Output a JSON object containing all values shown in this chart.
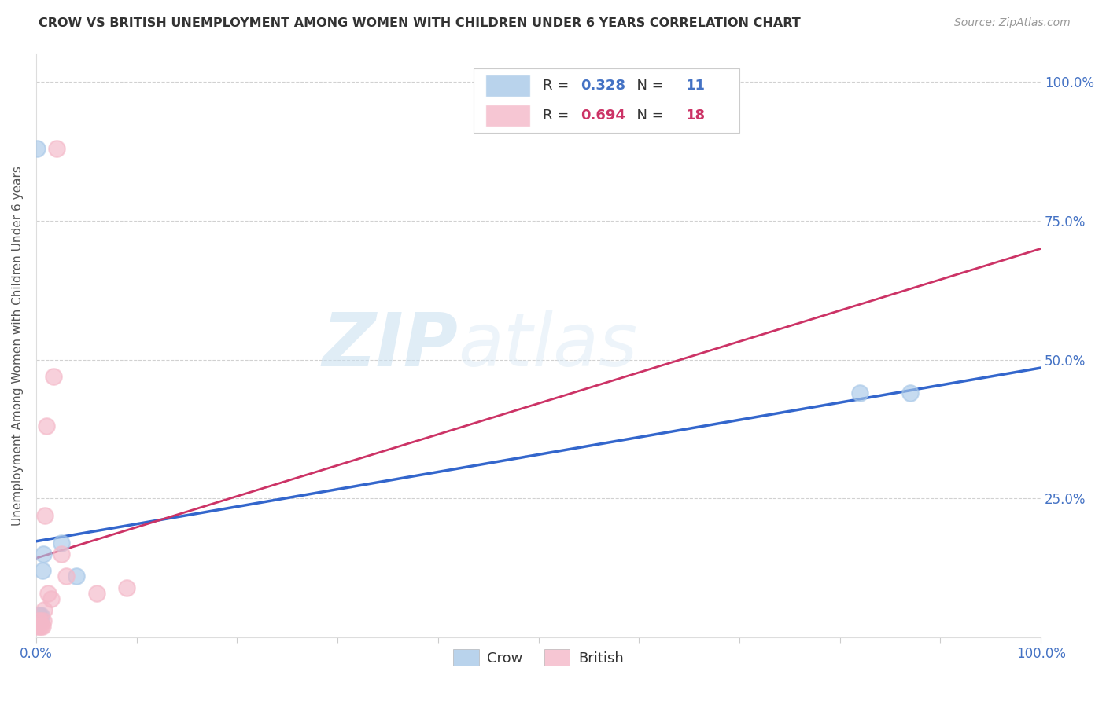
{
  "title": "CROW VS BRITISH UNEMPLOYMENT AMONG WOMEN WITH CHILDREN UNDER 6 YEARS CORRELATION CHART",
  "source": "Source: ZipAtlas.com",
  "ylabel": "Unemployment Among Women with Children Under 6 years",
  "crow_R": 0.328,
  "crow_N": 11,
  "british_R": 0.694,
  "british_N": 18,
  "crow_color": "#a8c8e8",
  "british_color": "#f4b8c8",
  "crow_line_color": "#3366cc",
  "british_line_color": "#cc3366",
  "crow_points_x": [
    0.001,
    0.002,
    0.003,
    0.004,
    0.005,
    0.006,
    0.007,
    0.025,
    0.04,
    0.82,
    0.87
  ],
  "crow_points_y": [
    0.88,
    0.04,
    0.04,
    0.03,
    0.04,
    0.12,
    0.15,
    0.17,
    0.11,
    0.44,
    0.44
  ],
  "british_points_x": [
    0.001,
    0.002,
    0.003,
    0.004,
    0.005,
    0.006,
    0.007,
    0.008,
    0.009,
    0.01,
    0.012,
    0.015,
    0.017,
    0.02,
    0.025,
    0.03,
    0.06,
    0.09
  ],
  "british_points_y": [
    0.02,
    0.03,
    0.02,
    0.03,
    0.02,
    0.02,
    0.03,
    0.05,
    0.22,
    0.38,
    0.08,
    0.07,
    0.47,
    0.88,
    0.15,
    0.11,
    0.08,
    0.09
  ],
  "xlim": [
    0.0,
    1.0
  ],
  "ylim": [
    0.0,
    1.05
  ],
  "right_yticks": [
    0.25,
    0.5,
    0.75,
    1.0
  ],
  "right_yticklabels": [
    "25.0%",
    "50.0%",
    "75.0%",
    "100.0%"
  ],
  "xticks": [
    0.0,
    0.1,
    0.2,
    0.3,
    0.4,
    0.5,
    0.6,
    0.7,
    0.8,
    0.9,
    1.0
  ],
  "xticklabels": [
    "0.0%",
    "",
    "",
    "",
    "",
    "",
    "",
    "",
    "",
    "",
    "100.0%"
  ],
  "background_color": "#ffffff",
  "grid_color": "#cccccc",
  "title_color": "#333333",
  "axis_label_color": "#555555",
  "tick_color": "#4472c4"
}
